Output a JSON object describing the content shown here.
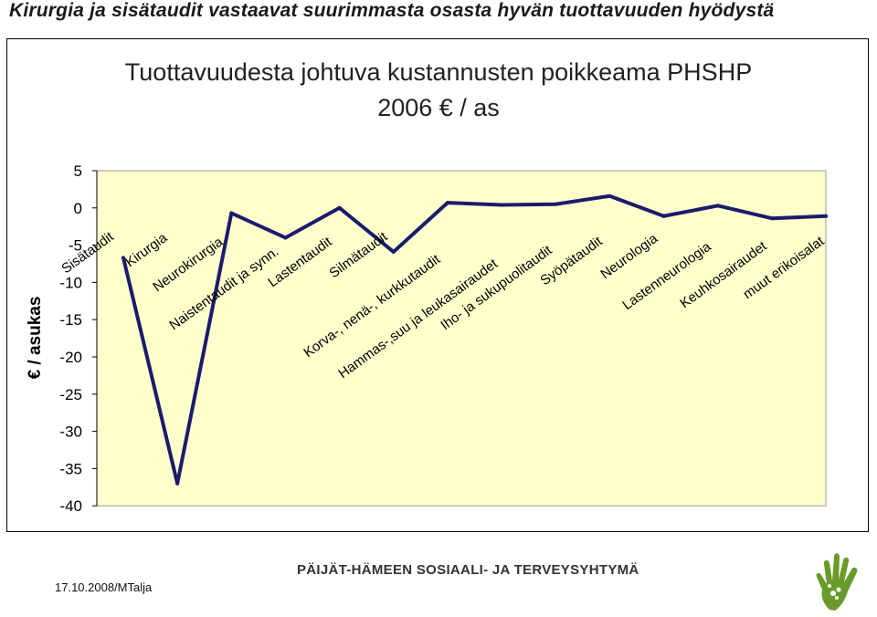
{
  "slide": {
    "headline": "Kirurgia ja sisätaudit vastaavat suurimmasta osasta hyvän tuottavuuden hyödystä",
    "footer_date": "17.10.2008/MTalja",
    "footer_org": "PÄIJÄT-HÄMEEN SOSIAALI- JA TERVEYSYHTYMÄ",
    "logo_icon": "hand-logo-icon"
  },
  "chart_data": {
    "type": "line",
    "title_line1": "Tuottavuudesta johtuva kustannusten poikkeama PHSHP",
    "title_line2": "2006 € / as",
    "ylabel": "€ / asukas",
    "xlabel": "",
    "ylim": [
      -40,
      5
    ],
    "yticks": [
      5,
      0,
      -5,
      -10,
      -15,
      -20,
      -25,
      -30,
      -35,
      -40
    ],
    "categories": [
      "Sisätaudit",
      "Kirurgia",
      "Neurokirurgia",
      "Naistentaudit ja synn.",
      "Lastentaudit",
      "Silmätaudit",
      "Korva-, nenä-, kurkkutaudit",
      "Hammas-,suu ja leukasairaudet",
      "Iho- ja sukupuolitaudit",
      "Syöpätaudit",
      "Neurologia",
      "Lastenneurologia",
      "Keuhkosairaudet",
      "muut erikoisalat"
    ],
    "series": [
      {
        "values": [
          -6.7,
          -37.0,
          -0.7,
          -4.0,
          0.0,
          -5.9,
          0.7,
          0.4,
          0.5,
          1.6,
          -1.1,
          0.3,
          -1.4,
          -1.1
        ]
      }
    ],
    "colors": {
      "line": "#1b1b6e",
      "plot_bg": "#ffffcc",
      "plot_border": "#999999"
    },
    "grid": false,
    "legend": "none"
  }
}
